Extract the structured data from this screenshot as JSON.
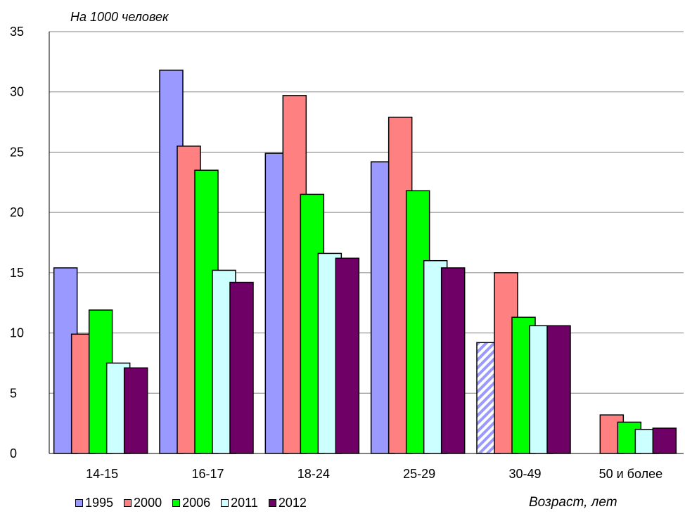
{
  "chart_data": {
    "type": "bar",
    "title": "",
    "unit_label": "На 1000 человек",
    "xlabel": "Возраст, лет",
    "ylabel": "",
    "ylim": [
      0,
      35
    ],
    "yticks": [
      0,
      5,
      10,
      15,
      20,
      25,
      30,
      35
    ],
    "grid": true,
    "legend_position": "bottom",
    "categories": [
      "14-15",
      "16-17",
      "18-24",
      "25-29",
      "30-49",
      "50 и более"
    ],
    "series": [
      {
        "name": "1995",
        "color": "#9999ff",
        "values": [
          15.4,
          31.8,
          24.9,
          24.2,
          9.2,
          null
        ],
        "hatched_index": 4
      },
      {
        "name": "2000",
        "color": "#ff8080",
        "values": [
          9.9,
          25.5,
          29.7,
          27.9,
          15.0,
          3.2
        ]
      },
      {
        "name": "2006",
        "color": "#00ff00",
        "values": [
          11.9,
          23.5,
          21.5,
          21.8,
          11.3,
          2.6
        ]
      },
      {
        "name": "2011",
        "color": "#ccffff",
        "values": [
          7.5,
          15.2,
          16.6,
          16.0,
          10.6,
          2.0
        ]
      },
      {
        "name": "2012",
        "color": "#6f0066",
        "values": [
          7.1,
          14.2,
          16.2,
          15.4,
          10.6,
          2.1
        ]
      }
    ]
  }
}
